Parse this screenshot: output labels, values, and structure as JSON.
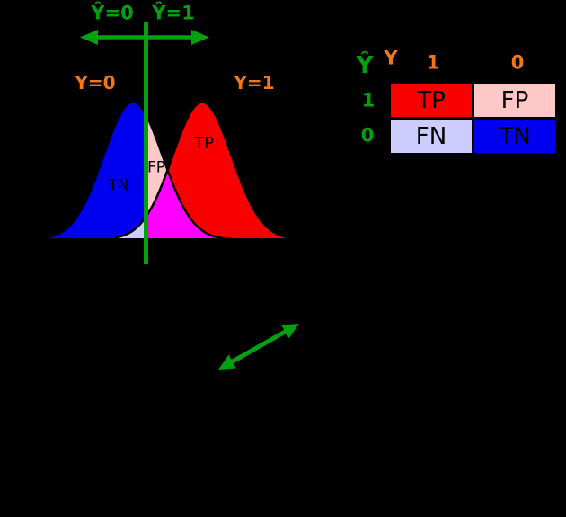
{
  "colors": {
    "background": "#000000",
    "green": "#00a010",
    "orange": "#f07818",
    "red": "#f80000",
    "blue": "#0000f0",
    "pink": "#ffc8c8",
    "lavender": "#ccccff",
    "magenta": "#ff00ff",
    "outline": "#000000"
  },
  "plot": {
    "predicted_left_label": "Ŷ=0",
    "predicted_right_label": "Ŷ=1",
    "class_left_label": "Y=0",
    "class_right_label": "Y=1",
    "tn_label": "TN",
    "fp_label": "FP",
    "tp_label": "TP"
  },
  "confusion_matrix": {
    "row_axis_label": "Ŷ",
    "col_axis_label": "Y",
    "col_headers": [
      "1",
      "0"
    ],
    "row_headers": [
      "1",
      "0"
    ],
    "cells": [
      [
        {
          "label": "TP",
          "bg": "#f80000"
        },
        {
          "label": "FP",
          "bg": "#ffc8c8"
        }
      ],
      [
        {
          "label": "FN",
          "bg": "#ccccff"
        },
        {
          "label": "TN",
          "bg": "#0000f0"
        }
      ]
    ]
  }
}
